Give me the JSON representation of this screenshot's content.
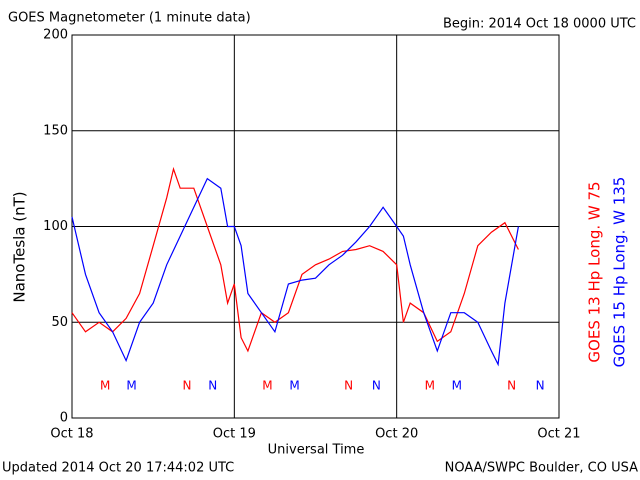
{
  "chart_data": {
    "type": "line",
    "title": "GOES Magnetometer (1 minute data)",
    "subtitle": "Begin:  2014 Oct 18 0000 UTC",
    "y_label": "NanoTesla (nT)",
    "x_label": "Universal Time",
    "footer_left": "Updated 2014 Oct 20 17:44:02 UTC",
    "footer_right": "NOAA/SWPC Boulder, CO USA",
    "xlim": [
      0,
      72
    ],
    "xticks": [
      {
        "value": 0,
        "label": "Oct 18"
      },
      {
        "value": 24,
        "label": "Oct 19"
      },
      {
        "value": 48,
        "label": "Oct 20"
      },
      {
        "value": 72,
        "label": "Oct 21"
      }
    ],
    "ylim": [
      0,
      200
    ],
    "yticks": [
      0,
      50,
      100,
      150,
      200
    ],
    "grid": true,
    "series": [
      {
        "name": "GOES 13 Hp  Long. W 75",
        "color": "#ff0000",
        "x": [
          0,
          2,
          4,
          6,
          8,
          10,
          12,
          14,
          15,
          16,
          18,
          20,
          22,
          23,
          24,
          25,
          26,
          28,
          30,
          32,
          34,
          36,
          38,
          40,
          42,
          44,
          46,
          48,
          49,
          50,
          52,
          54,
          56,
          58,
          60,
          62,
          64,
          66
        ],
        "values": [
          55,
          45,
          50,
          45,
          52,
          65,
          90,
          115,
          130,
          120,
          120,
          100,
          80,
          60,
          70,
          42,
          35,
          55,
          50,
          55,
          75,
          80,
          83,
          87,
          88,
          90,
          87,
          80,
          50,
          60,
          55,
          40,
          45,
          65,
          90,
          97,
          102,
          88
        ]
      },
      {
        "name": "GOES 15 Hp  Long. W 135",
        "color": "#0000ff",
        "x": [
          0,
          2,
          4,
          6,
          8,
          10,
          12,
          14,
          16,
          18,
          20,
          22,
          23,
          24,
          25,
          26,
          28,
          30,
          32,
          34,
          36,
          38,
          40,
          42,
          44,
          46,
          48,
          49,
          50,
          52,
          54,
          56,
          58,
          60,
          62,
          63,
          64,
          66
        ],
        "values": [
          105,
          75,
          55,
          45,
          30,
          50,
          60,
          80,
          95,
          110,
          125,
          120,
          100,
          100,
          90,
          65,
          55,
          45,
          70,
          72,
          73,
          80,
          85,
          92,
          100,
          110,
          100,
          95,
          80,
          55,
          35,
          55,
          55,
          50,
          35,
          28,
          60,
          100
        ]
      }
    ],
    "markers": [
      {
        "label": "M",
        "x": 4.9,
        "color": "#ff0000"
      },
      {
        "label": "M",
        "x": 8.8,
        "color": "#0000ff"
      },
      {
        "label": "N",
        "x": 17,
        "color": "#ff0000"
      },
      {
        "label": "N",
        "x": 20.8,
        "color": "#0000ff"
      },
      {
        "label": "M",
        "x": 28.9,
        "color": "#ff0000"
      },
      {
        "label": "M",
        "x": 32.9,
        "color": "#0000ff"
      },
      {
        "label": "N",
        "x": 40.9,
        "color": "#ff0000"
      },
      {
        "label": "N",
        "x": 45,
        "color": "#0000ff"
      },
      {
        "label": "M",
        "x": 52.9,
        "color": "#ff0000"
      },
      {
        "label": "M",
        "x": 56.9,
        "color": "#0000ff"
      },
      {
        "label": "N",
        "x": 65,
        "color": "#ff0000"
      },
      {
        "label": "N",
        "x": 69.2,
        "color": "#0000ff"
      }
    ]
  }
}
